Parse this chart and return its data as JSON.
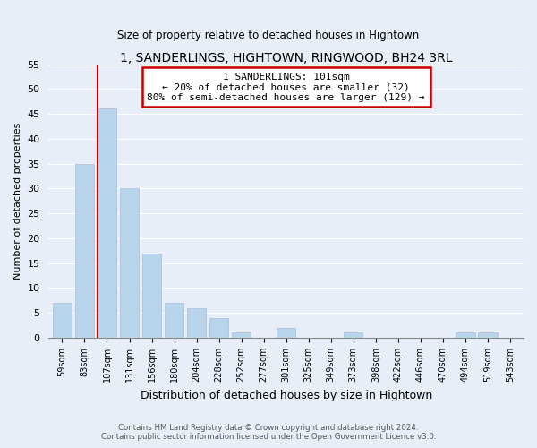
{
  "title": "1, SANDERLINGS, HIGHTOWN, RINGWOOD, BH24 3RL",
  "subtitle": "Size of property relative to detached houses in Hightown",
  "xlabel": "Distribution of detached houses by size in Hightown",
  "ylabel": "Number of detached properties",
  "bin_labels": [
    "59sqm",
    "83sqm",
    "107sqm",
    "131sqm",
    "156sqm",
    "180sqm",
    "204sqm",
    "228sqm",
    "252sqm",
    "277sqm",
    "301sqm",
    "325sqm",
    "349sqm",
    "373sqm",
    "398sqm",
    "422sqm",
    "446sqm",
    "470sqm",
    "494sqm",
    "519sqm",
    "543sqm"
  ],
  "bar_heights": [
    7,
    35,
    46,
    30,
    17,
    7,
    6,
    4,
    1,
    0,
    2,
    0,
    0,
    1,
    0,
    0,
    0,
    0,
    1,
    1,
    0
  ],
  "bar_color": "#b8d4ea",
  "annotation_title": "1 SANDERLINGS: 101sqm",
  "annotation_line1": "← 20% of detached houses are smaller (32)",
  "annotation_line2": "80% of semi-detached houses are larger (129) →",
  "annotation_box_color": "#ffffff",
  "annotation_box_edge": "#cc0000",
  "vline_color": "#cc0000",
  "ylim": [
    0,
    55
  ],
  "yticks": [
    0,
    5,
    10,
    15,
    20,
    25,
    30,
    35,
    40,
    45,
    50,
    55
  ],
  "footer_line1": "Contains HM Land Registry data © Crown copyright and database right 2024.",
  "footer_line2": "Contains public sector information licensed under the Open Government Licence v3.0.",
  "background_color": "#e8eef8",
  "plot_background": "#e8eef8",
  "grid_color": "#ffffff"
}
